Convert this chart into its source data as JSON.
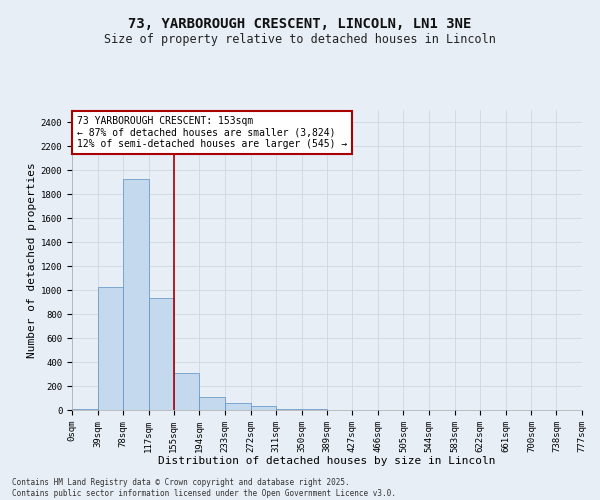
{
  "title_line1": "73, YARBOROUGH CRESCENT, LINCOLN, LN1 3NE",
  "title_line2": "Size of property relative to detached houses in Lincoln",
  "xlabel": "Distribution of detached houses by size in Lincoln",
  "ylabel": "Number of detached properties",
  "bar_color": "#c5d9ee",
  "bar_edge_color": "#5a8fc2",
  "grid_color": "#c8d4e3",
  "background_color": "#e8eef5",
  "vline_color": "#aa0000",
  "vline_x": 155,
  "annotation_text": "73 YARBOROUGH CRESCENT: 153sqm\n← 87% of detached houses are smaller (3,824)\n12% of semi-detached houses are larger (545) →",
  "annotation_box_color": "#ffffff",
  "annotation_border_color": "#aa0000",
  "bin_edges": [
    0,
    39,
    78,
    117,
    155,
    194,
    233,
    272,
    311,
    350,
    389,
    427,
    466,
    505,
    544,
    583,
    622,
    661,
    700,
    738,
    777
  ],
  "bin_labels": [
    "0sqm",
    "39sqm",
    "78sqm",
    "117sqm",
    "155sqm",
    "194sqm",
    "233sqm",
    "272sqm",
    "311sqm",
    "350sqm",
    "389sqm",
    "427sqm",
    "466sqm",
    "505sqm",
    "544sqm",
    "583sqm",
    "622sqm",
    "661sqm",
    "700sqm",
    "738sqm",
    "777sqm"
  ],
  "bar_heights": [
    10,
    1025,
    1925,
    930,
    310,
    110,
    55,
    30,
    10,
    5,
    2,
    1,
    0,
    0,
    0,
    0,
    0,
    0,
    0,
    0
  ],
  "ylim": [
    0,
    2500
  ],
  "yticks": [
    0,
    200,
    400,
    600,
    800,
    1000,
    1200,
    1400,
    1600,
    1800,
    2000,
    2200,
    2400
  ],
  "footnote": "Contains HM Land Registry data © Crown copyright and database right 2025.\nContains public sector information licensed under the Open Government Licence v3.0.",
  "title_fontsize": 10,
  "subtitle_fontsize": 8.5,
  "tick_fontsize": 6.5,
  "label_fontsize": 8,
  "annotation_fontsize": 7,
  "footnote_fontsize": 5.5
}
